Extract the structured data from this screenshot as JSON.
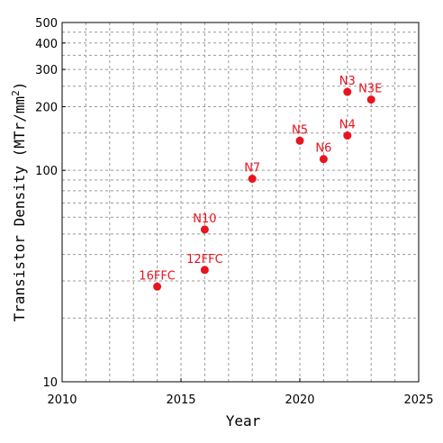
{
  "chart_data": {
    "type": "scatter",
    "xlabel": "Year",
    "ylabel": "Transistor Density (MTr/mm",
    "ylabel_sup": "2",
    "ylabel_close": ")",
    "xlim": [
      2010,
      2025
    ],
    "ylim": [
      10,
      500
    ],
    "yscale": "log",
    "grid": true,
    "x_ticks": [
      2010,
      2015,
      2020,
      2025
    ],
    "y_ticks": [
      10,
      100,
      200,
      300,
      400,
      500
    ],
    "y_minor_grid": [
      20,
      30,
      40,
      50,
      60,
      70,
      80,
      90,
      150,
      250,
      350,
      450
    ],
    "x_minor_grid": [
      2011,
      2012,
      2013,
      2014,
      2016,
      2017,
      2018,
      2019,
      2021,
      2022,
      2023,
      2024
    ],
    "marker_color": "#e8141e",
    "points": [
      {
        "label": "16FFC",
        "x": 2014,
        "y": 28.2
      },
      {
        "label": "12FFC",
        "x": 2016,
        "y": 33.8
      },
      {
        "label": "N10",
        "x": 2016,
        "y": 52.5
      },
      {
        "label": "N7",
        "x": 2018,
        "y": 91.2
      },
      {
        "label": "N5",
        "x": 2020,
        "y": 138
      },
      {
        "label": "N6",
        "x": 2021,
        "y": 113
      },
      {
        "label": "N3",
        "x": 2022,
        "y": 235
      },
      {
        "label": "N4",
        "x": 2022,
        "y": 146
      },
      {
        "label": "N3E",
        "x": 2023,
        "y": 216
      }
    ]
  }
}
